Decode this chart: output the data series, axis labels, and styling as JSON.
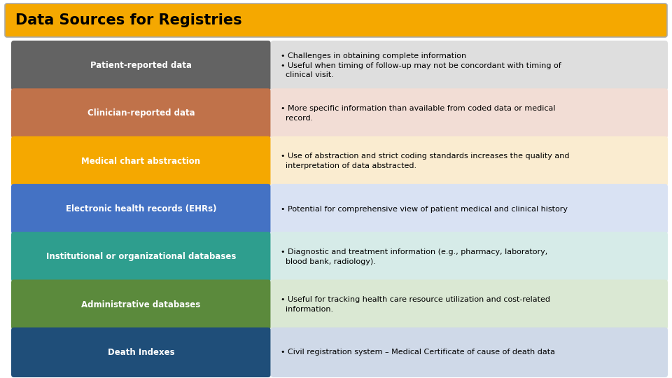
{
  "title": "Data Sources for Registries",
  "title_bg": "#F5A800",
  "title_color": "#000000",
  "background_color": "#FFFFFF",
  "rows": [
    {
      "label": "Patient-reported data",
      "label_bg": "#636363",
      "label_color": "#FFFFFF",
      "desc_bg": "#DEDEDE",
      "desc_color": "#000000",
      "text": "• Challenges in obtaining complete information\n• Useful when timing of follow-up may not be concordant with timing of\n  clinical visit."
    },
    {
      "label": "Clinician-reported data",
      "label_bg": "#C0724A",
      "label_color": "#FFFFFF",
      "desc_bg": "#F2DDD5",
      "desc_color": "#000000",
      "text": "• More specific information than available from coded data or medical\n  record."
    },
    {
      "label": "Medical chart abstraction",
      "label_bg": "#F5A800",
      "label_color": "#FFFFFF",
      "desc_bg": "#FAECD0",
      "desc_color": "#000000",
      "text": "• Use of abstraction and strict coding standards increases the quality and\n  interpretation of data abstracted."
    },
    {
      "label": "Electronic health records (EHRs)",
      "label_bg": "#4472C4",
      "label_color": "#FFFFFF",
      "desc_bg": "#D9E2F3",
      "desc_color": "#000000",
      "text": "• Potential for comprehensive view of patient medical and clinical history"
    },
    {
      "label": "Institutional or organizational databases",
      "label_bg": "#2E9E8E",
      "label_color": "#FFFFFF",
      "desc_bg": "#D6EBE8",
      "desc_color": "#000000",
      "text": "• Diagnostic and treatment information (e.g., pharmacy, laboratory,\n  blood bank, radiology)."
    },
    {
      "label": "Administrative databases",
      "label_bg": "#5B8A3C",
      "label_color": "#FFFFFF",
      "desc_bg": "#DAE8D3",
      "desc_color": "#000000",
      "text": "• Useful for tracking health care resource utilization and cost-related\n  information."
    },
    {
      "label": "Death Indexes",
      "label_bg": "#1F4E79",
      "label_color": "#FFFFFF",
      "desc_bg": "#CFD9E8",
      "desc_color": "#000000",
      "text": "• Civil registration system – Medical Certificate of cause of death data"
    }
  ]
}
